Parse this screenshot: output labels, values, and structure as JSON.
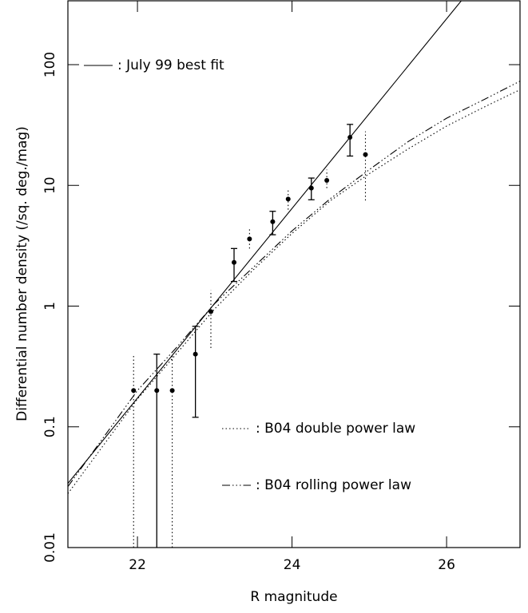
{
  "chart_data": {
    "type": "scatter",
    "xlabel": "R magnitude",
    "ylabel": "Differential number density (/sq. deg./mag)",
    "xlim": [
      21.1,
      26.95
    ],
    "ylim": [
      0.01,
      338
    ],
    "xticks": [
      22,
      24,
      26
    ],
    "yticks": [
      0.01,
      0.1,
      1,
      10,
      100
    ],
    "y_log": true,
    "series": [
      {
        "color": "#000000",
        "error_style": "solid",
        "x": [
          22.25,
          22.75,
          23.25,
          23.75,
          24.25,
          24.75
        ],
        "values": [
          0.2,
          0.4,
          2.3,
          5.0,
          9.5,
          25
        ],
        "lower": [
          0.01,
          0.12,
          1.6,
          3.9,
          7.6,
          17.5
        ],
        "upper": [
          0.4,
          0.68,
          3.0,
          6.1,
          11.5,
          32
        ]
      },
      {
        "color": "#000000",
        "error_style": "dotted",
        "x": [
          21.95,
          22.45,
          22.95,
          23.45,
          23.95,
          24.45,
          24.95
        ],
        "values": [
          0.2,
          0.2,
          0.9,
          3.6,
          7.7,
          11,
          18
        ],
        "lower": [
          0.01,
          0.01,
          0.45,
          3.0,
          6.3,
          9.5,
          7.5
        ],
        "upper": [
          0.4,
          0.4,
          1.35,
          4.5,
          9.2,
          13.5,
          28
        ]
      }
    ],
    "lines": [
      {
        "name": ": July 99 best fit",
        "color": "#000000",
        "dash": "solid",
        "x": [
          21.1,
          26.19
        ],
        "values": [
          0.034,
          338
        ]
      },
      {
        "name": ": B04 double power law",
        "color": "#000000",
        "dash": "dotted",
        "x": [
          21.1,
          22,
          22.5,
          23,
          23.5,
          24,
          24.5,
          25,
          25.5,
          26,
          26.5,
          26.95
        ],
        "values": [
          0.028,
          0.17,
          0.4,
          0.95,
          2.0,
          4.0,
          7.5,
          12.5,
          20,
          31,
          45,
          62
        ]
      },
      {
        "name": ": B04 rolling power law",
        "color": "#000000",
        "dash": "dashdotdotdot",
        "x": [
          21.1,
          22,
          22.5,
          23,
          23.5,
          24,
          24.5,
          25,
          25.5,
          26,
          26.5,
          26.95
        ],
        "values": [
          0.032,
          0.2,
          0.45,
          1.05,
          2.1,
          4.2,
          7.8,
          13.5,
          23,
          36,
          52,
          73
        ]
      }
    ]
  }
}
